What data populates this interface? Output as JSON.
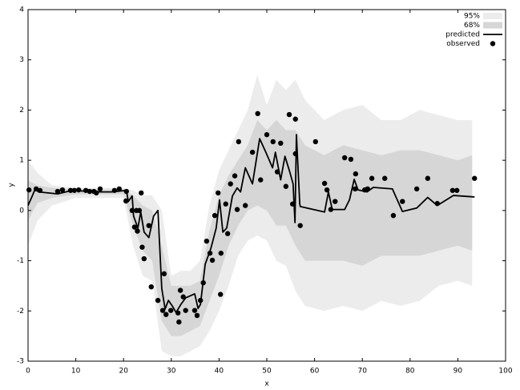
{
  "chart_data": {
    "type": "line",
    "xlabel": "x",
    "ylabel": "y",
    "xlim": [
      0,
      100
    ],
    "ylim": [
      -3,
      4
    ],
    "xticks": [
      0,
      10,
      20,
      30,
      40,
      50,
      60,
      70,
      80,
      90,
      100
    ],
    "yticks": [
      -3,
      -2,
      -1,
      0,
      1,
      2,
      3,
      4
    ],
    "legend": "upper right",
    "series": [
      {
        "name": "95%",
        "type": "area",
        "color": "#ececec",
        "x": [
          0,
          2,
          5,
          10,
          15,
          20,
          22,
          24,
          26,
          28,
          30,
          32,
          34,
          36,
          38,
          40,
          42,
          44,
          46,
          48,
          50,
          52,
          54,
          56,
          58,
          62,
          66,
          70,
          74,
          78,
          82,
          86,
          90,
          93
        ],
        "upper": [
          1.0,
          0.75,
          0.5,
          0.45,
          0.45,
          0.45,
          0.4,
          0.3,
          0.3,
          0.0,
          -1.3,
          -1.2,
          -1.2,
          -1.0,
          0.1,
          0.8,
          1.2,
          1.6,
          2.0,
          2.7,
          2.1,
          2.6,
          2.4,
          2.6,
          2.2,
          1.8,
          2.0,
          2.1,
          1.8,
          1.8,
          2.0,
          1.9,
          1.8,
          1.8
        ],
        "lower": [
          -0.7,
          -0.2,
          0.1,
          0.25,
          0.25,
          0.25,
          -0.7,
          -1.3,
          -1.4,
          -2.8,
          -2.9,
          -2.9,
          -2.8,
          -2.7,
          -2.4,
          -2.0,
          -1.5,
          -0.9,
          -0.6,
          -0.5,
          -0.6,
          -1.0,
          -1.1,
          -1.6,
          -1.9,
          -2.0,
          -1.9,
          -2.0,
          -1.8,
          -1.9,
          -1.8,
          -1.5,
          -1.4,
          -1.5
        ]
      },
      {
        "name": "68%",
        "type": "area",
        "color": "#d6d6d6",
        "x": [
          0,
          2,
          5,
          10,
          15,
          20,
          22,
          24,
          26,
          28,
          30,
          32,
          34,
          36,
          38,
          40,
          42,
          44,
          46,
          48,
          50,
          52,
          54,
          56,
          58,
          62,
          66,
          70,
          74,
          78,
          82,
          86,
          90,
          93
        ],
        "upper": [
          0.6,
          0.5,
          0.45,
          0.42,
          0.42,
          0.42,
          0.3,
          0.1,
          0.0,
          -0.7,
          -1.5,
          -1.5,
          -1.5,
          -1.4,
          -0.4,
          0.3,
          0.7,
          1.0,
          1.3,
          1.8,
          1.6,
          1.8,
          1.6,
          1.6,
          1.3,
          1.1,
          1.3,
          1.2,
          1.1,
          1.2,
          1.2,
          1.1,
          1.0,
          1.1
        ],
        "lower": [
          -0.2,
          0.15,
          0.25,
          0.32,
          0.32,
          0.32,
          -0.3,
          -0.8,
          -1.0,
          -2.2,
          -2.5,
          -2.5,
          -2.4,
          -2.3,
          -1.8,
          -1.3,
          -0.7,
          -0.3,
          0.0,
          0.1,
          0.0,
          -0.3,
          -0.3,
          -0.7,
          -1.0,
          -1.0,
          -1.0,
          -1.1,
          -0.9,
          -0.9,
          -0.9,
          -0.8,
          -0.7,
          -0.8
        ]
      },
      {
        "name": "predicted",
        "type": "line",
        "color": "#000000",
        "x": [
          0,
          0.8,
          1.5,
          2.2,
          6.2,
          9.2,
          14.3,
          17.6,
          20.6,
          21,
          21.8,
          22.1,
          23,
          23.6,
          24.3,
          25.3,
          26.3,
          27.2,
          28,
          28.7,
          29.4,
          30.2,
          31,
          32,
          33,
          34.9,
          35.6,
          36.1,
          37.1,
          38.3,
          39.4,
          40.1,
          40.8,
          41.6,
          42.8,
          43.8,
          44.5,
          45.5,
          47,
          48.5,
          49.8,
          51.2,
          51.8,
          52.9,
          53.8,
          54.8,
          55.5,
          55.9,
          56.2,
          56.9,
          57,
          62.1,
          62.9,
          63.7,
          66.3,
          67.3,
          68.3,
          69.1,
          71,
          72.3,
          76.3,
          78.4,
          81.4,
          83.7,
          85.7,
          89.1,
          93.5
        ],
        "values": [
          0.1,
          0.27,
          0.43,
          0.37,
          0.33,
          0.4,
          0.37,
          0.37,
          0.4,
          0.18,
          0.29,
          -0.11,
          -0.35,
          -0.03,
          -0.43,
          -0.54,
          -0.11,
          0,
          -1.55,
          -1.96,
          -1.79,
          -1.9,
          -2.03,
          -1.87,
          -1.74,
          -1.66,
          -1.95,
          -1.87,
          -1.07,
          -0.75,
          -0.35,
          0.21,
          -0.43,
          -0.35,
          0.29,
          0.45,
          0.37,
          0.85,
          0.53,
          1.43,
          1.16,
          0.85,
          1.16,
          0.61,
          1.08,
          0.77,
          0.53,
          -0.24,
          1.51,
          0.13,
          0.08,
          -0.03,
          0.37,
          0.02,
          0.02,
          0.21,
          0.62,
          0.41,
          0.37,
          0.46,
          0.43,
          -0.02,
          0.05,
          0.26,
          0.1,
          0.3,
          0.27
        ]
      },
      {
        "name": "observed",
        "type": "scatter",
        "color": "#000000",
        "x": [
          0.2,
          1.7,
          2.5,
          6.2,
          7.2,
          8.9,
          9.7,
          10.6,
          12.1,
          12.9,
          13.8,
          14.3,
          15.1,
          18.1,
          19.1,
          20.6,
          20.5,
          21.8,
          22.3,
          22.7,
          22.9,
          23.3,
          23.7,
          23.9,
          24.3,
          25.3,
          25.8,
          27.2,
          28.2,
          28.5,
          28.9,
          29.9,
          31.4,
          31.6,
          31.9,
          32.5,
          33,
          34.9,
          35.4,
          36.1,
          36.7,
          37.4,
          38.1,
          38.6,
          39.1,
          39.8,
          40.3,
          40.4,
          41.4,
          41.8,
          42.4,
          43.3,
          43.8,
          44.1,
          45.5,
          47,
          48.1,
          48.7,
          50,
          51.3,
          52.2,
          52.9,
          54,
          54.7,
          55.4,
          56,
          56,
          57,
          60.2,
          62.1,
          62.6,
          63.4,
          64.3,
          66.3,
          67.6,
          68.5,
          68.6,
          70.5,
          71.1,
          72,
          74.7,
          76.5,
          78.4,
          81.4,
          83.7,
          85.7,
          88.9,
          89.8,
          93.5
        ],
        "values": [
          0.41,
          0.43,
          0.4,
          0.38,
          0.41,
          0.4,
          0.4,
          0.41,
          0.4,
          0.38,
          0.38,
          0.35,
          0.43,
          0.4,
          0.43,
          0.38,
          0.19,
          0,
          -0.33,
          0,
          -0.41,
          0,
          0.35,
          -0.73,
          -0.96,
          -0.3,
          -1.52,
          -1.79,
          -1.99,
          -1.26,
          -2.07,
          -1.99,
          -2.04,
          -2.22,
          -1.59,
          -1.72,
          -1.99,
          -1.99,
          -2.09,
          -1.79,
          -1.44,
          -0.61,
          -0.85,
          -0.99,
          -0.1,
          0.35,
          -1.67,
          -0.85,
          0.13,
          -0.46,
          0.53,
          0.69,
          0.02,
          1.37,
          0.1,
          1.16,
          1.93,
          0.61,
          1.51,
          1.37,
          0.77,
          1.34,
          0.48,
          1.91,
          0.13,
          1.82,
          1.13,
          -0.3,
          1.37,
          0.54,
          0.41,
          0.02,
          0.18,
          1.05,
          1.02,
          0.43,
          0.73,
          0.41,
          0.43,
          0.64,
          0.64,
          -0.1,
          0.18,
          0.43,
          0.64,
          0.14,
          0.4,
          0.4,
          0.64
        ]
      }
    ]
  }
}
